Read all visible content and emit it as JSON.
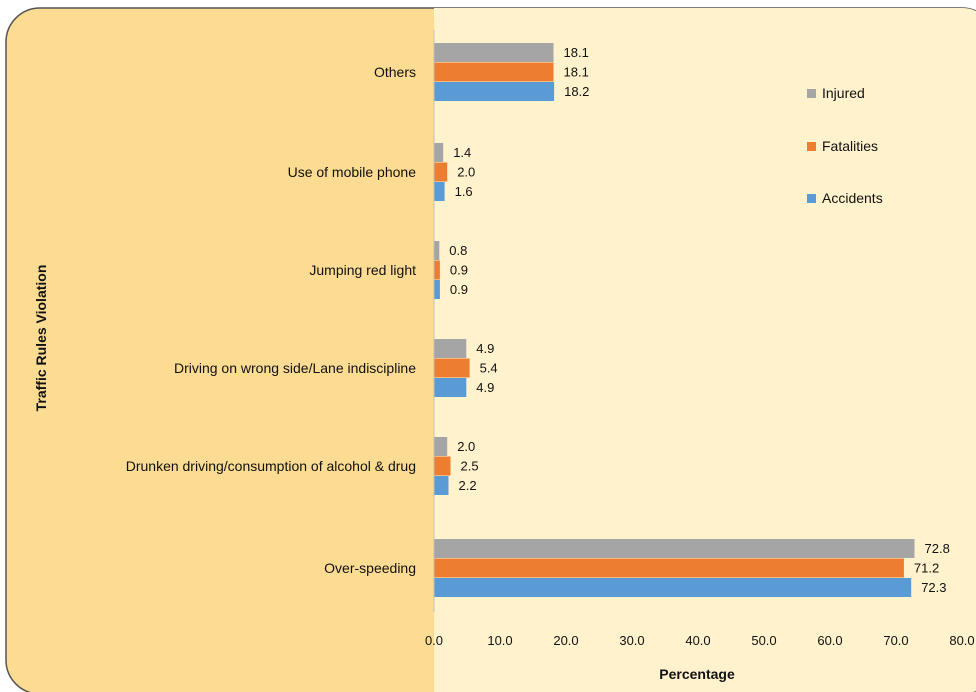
{
  "chart_data": {
    "type": "bar",
    "orientation": "horizontal",
    "title": "",
    "xlabel": "Percentage",
    "ylabel": "Traffic Rules Violation",
    "categories": [
      "Others",
      "Use of mobile phone",
      "Jumping red light",
      "Driving on wrong side/Lane indiscipline",
      "Drunken driving/consumption of alcohol & drug",
      "Over-speeding"
    ],
    "series": [
      {
        "name": "Injured",
        "color": "#a5a5a5",
        "values": [
          18.1,
          1.4,
          0.8,
          4.9,
          2.0,
          72.8
        ],
        "labels": [
          "18.1",
          "1.4",
          "0.8",
          "4.9",
          "2.0",
          "72.8"
        ]
      },
      {
        "name": "Fatalities",
        "color": "#ed7d31",
        "values": [
          18.1,
          2.0,
          0.9,
          5.4,
          2.5,
          71.2
        ],
        "labels": [
          "18.1",
          "2.0",
          "0.9",
          "5.4",
          "2.5",
          "71.2"
        ]
      },
      {
        "name": "Accidents",
        "color": "#5b9bd5",
        "values": [
          18.2,
          1.6,
          0.9,
          4.9,
          2.2,
          72.3
        ],
        "labels": [
          "18.2",
          "1.6",
          "0.9",
          "4.9",
          "2.2",
          "72.3"
        ]
      }
    ],
    "xlim": [
      0,
      80
    ],
    "ticks": [
      "0.0",
      "10.0",
      "20.0",
      "30.0",
      "40.0",
      "50.0",
      "60.0",
      "70.0",
      "80.0"
    ],
    "tick_values": [
      0,
      10,
      20,
      30,
      40,
      50,
      60,
      70,
      80
    ],
    "grid": false,
    "legend_position": "right",
    "legend_order": [
      "Injured",
      "Fatalities",
      "Accidents"
    ],
    "colors": {
      "outer_background": "#fbdc92",
      "plot_background": "#fff2cc",
      "frame_border": "#555555"
    }
  }
}
